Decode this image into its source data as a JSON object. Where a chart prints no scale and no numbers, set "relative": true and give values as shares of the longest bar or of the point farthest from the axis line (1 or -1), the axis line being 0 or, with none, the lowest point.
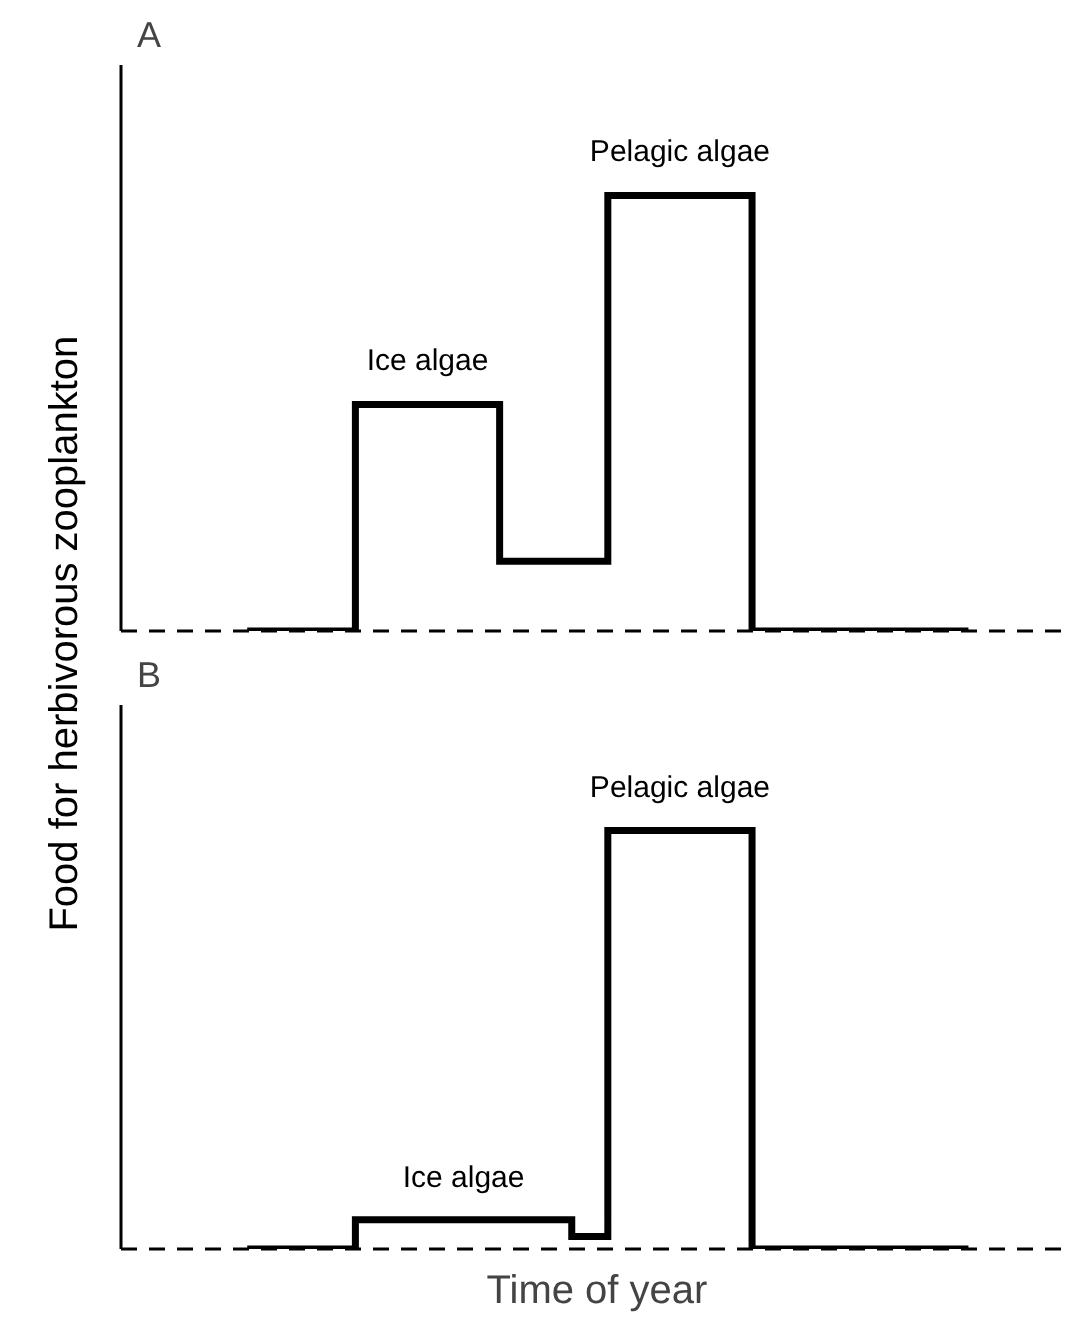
{
  "chart_data": [
    {
      "type": "step",
      "title": "A",
      "ylabel": "Food for herbivorous zooplankton",
      "relative": true,
      "categories": [
        null,
        null,
        null,
        null,
        null,
        null,
        null,
        null,
        null,
        null,
        null,
        null,
        null,
        null,
        null,
        null,
        null,
        null,
        null,
        null,
        null
      ],
      "series": [
        {
          "color": "#000000",
          "values": [
            0,
            0,
            0,
            0.52,
            0.52,
            0.52,
            0.52,
            0.16,
            0.16,
            0.16,
            1,
            1,
            1,
            1,
            0,
            0,
            0,
            0,
            0,
            0,
            0
          ]
        }
      ],
      "annotations": [
        {
          "text": "Ice algae",
          "y": 0.52
        },
        {
          "text": "Pelagic algae",
          "y": 1
        }
      ]
    },
    {
      "type": "step",
      "title": "B",
      "xlabel": "Time of year",
      "relative": true,
      "categories": [
        null,
        null,
        null,
        null,
        null,
        null,
        null,
        null,
        null,
        null,
        null,
        null,
        null,
        null,
        null,
        null,
        null,
        null,
        null,
        null,
        null
      ],
      "series": [
        {
          "color": "#000000",
          "values": [
            0,
            0,
            0,
            0.07,
            0.07,
            0.07,
            0.07,
            0.07,
            0.07,
            0.03,
            1,
            1,
            1,
            1,
            0,
            0,
            0,
            0,
            0,
            0,
            0
          ]
        }
      ],
      "annotations": [
        {
          "text": "Ice algae",
          "y": 0.07
        },
        {
          "text": "Pelagic algae",
          "y": 1
        }
      ]
    }
  ]
}
